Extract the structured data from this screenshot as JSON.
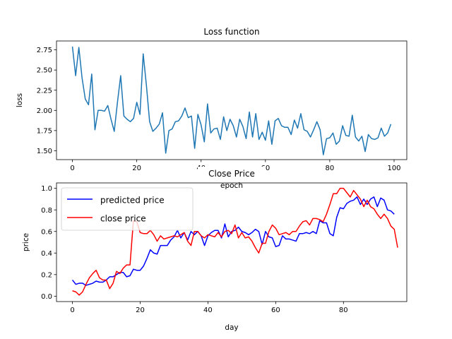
{
  "chart_data": [
    {
      "type": "line",
      "title": "Loss function",
      "xlabel": "epoch",
      "ylabel": "loss",
      "xlim": [
        -4.95,
        103.95
      ],
      "ylim": [
        1.39,
        2.86
      ],
      "xticks": [
        0,
        20,
        40,
        60,
        80,
        100
      ],
      "yticks": [
        1.5,
        1.75,
        2.0,
        2.25,
        2.5,
        2.75
      ],
      "ytick_labels": [
        "1.50",
        "1.75",
        "2.00",
        "2.25",
        "2.50",
        "2.75"
      ],
      "grid": false,
      "series": [
        {
          "color": "#1f77b4",
          "x_start": 0,
          "values": [
            2.79,
            2.43,
            2.78,
            2.4,
            2.14,
            2.07,
            2.45,
            1.76,
            2.0,
            2.0,
            1.99,
            2.06,
            1.89,
            1.74,
            2.1,
            2.43,
            1.93,
            1.89,
            1.86,
            1.9,
            2.1,
            1.95,
            2.7,
            2.31,
            1.86,
            1.74,
            1.78,
            1.83,
            1.97,
            1.47,
            1.75,
            1.77,
            1.86,
            1.87,
            1.93,
            2.03,
            1.91,
            1.93,
            1.53,
            1.95,
            1.82,
            1.61,
            2.08,
            1.72,
            1.77,
            1.78,
            1.64,
            1.92,
            1.75,
            1.89,
            1.81,
            1.67,
            1.89,
            1.8,
            1.65,
            1.98,
            1.67,
            1.96,
            1.64,
            1.73,
            1.63,
            1.87,
            1.58,
            1.87,
            1.9,
            1.81,
            1.79,
            1.79,
            1.7,
            1.88,
            1.78,
            1.96,
            1.76,
            1.74,
            1.67,
            1.76,
            1.86,
            1.76,
            1.45,
            1.65,
            1.66,
            1.72,
            1.58,
            1.62,
            1.81,
            1.69,
            1.68,
            1.94,
            1.67,
            1.62,
            1.68,
            1.49,
            1.7,
            1.65,
            1.64,
            1.66,
            1.78,
            1.68,
            1.72,
            1.83
          ]
        }
      ]
    },
    {
      "type": "line",
      "title": "Close Price",
      "xlabel": "day",
      "ylabel": "price",
      "xlim": [
        -4.7,
        98.7
      ],
      "ylim": [
        -0.05,
        1.05
      ],
      "xticks": [
        0,
        20,
        40,
        60,
        80
      ],
      "yticks": [
        0.0,
        0.2,
        0.4,
        0.6,
        0.8,
        1.0
      ],
      "ytick_labels": [
        "0.0",
        "0.2",
        "0.4",
        "0.6",
        "0.8",
        "1.0"
      ],
      "grid": false,
      "legend": "top-left",
      "series": [
        {
          "name": "predicted price",
          "color": "#0000ff",
          "x_start": 0,
          "values": [
            0.15,
            0.11,
            0.12,
            0.12,
            0.1,
            0.11,
            0.12,
            0.14,
            0.13,
            0.13,
            0.15,
            0.18,
            0.18,
            0.2,
            0.22,
            0.22,
            0.18,
            0.19,
            0.25,
            0.24,
            0.24,
            0.28,
            0.35,
            0.43,
            0.4,
            0.39,
            0.47,
            0.47,
            0.47,
            0.52,
            0.55,
            0.61,
            0.54,
            0.59,
            0.52,
            0.6,
            0.57,
            0.6,
            0.56,
            0.47,
            0.56,
            0.59,
            0.61,
            0.61,
            0.54,
            0.67,
            0.55,
            0.6,
            0.61,
            0.64,
            0.6,
            0.59,
            0.57,
            0.59,
            0.62,
            0.6,
            0.48,
            0.6,
            0.55,
            0.54,
            0.46,
            0.47,
            0.56,
            0.53,
            0.53,
            0.52,
            0.51,
            0.58,
            0.58,
            0.59,
            0.58,
            0.6,
            0.58,
            0.7,
            0.68,
            0.68,
            0.58,
            0.56,
            0.73,
            0.82,
            0.81,
            0.86,
            0.88,
            0.89,
            0.92,
            0.85,
            0.9,
            0.85,
            0.9,
            0.92,
            0.83,
            0.91,
            0.89,
            0.8,
            0.79,
            0.76
          ]
        },
        {
          "name": "close price",
          "color": "#ff0000",
          "x_start": 0,
          "values": [
            0.05,
            0.04,
            0.01,
            0.04,
            0.11,
            0.17,
            0.21,
            0.24,
            0.17,
            0.15,
            0.15,
            0.07,
            0.12,
            0.23,
            0.21,
            0.26,
            0.29,
            0.29,
            0.7,
            0.69,
            0.59,
            0.58,
            0.58,
            0.61,
            0.57,
            0.51,
            0.56,
            0.53,
            0.54,
            0.55,
            0.56,
            0.55,
            0.57,
            0.59,
            0.51,
            0.47,
            0.6,
            0.6,
            0.56,
            0.54,
            0.57,
            0.56,
            0.55,
            0.59,
            0.55,
            0.6,
            0.61,
            0.58,
            0.66,
            0.54,
            0.59,
            0.54,
            0.55,
            0.51,
            0.45,
            0.4,
            0.49,
            0.49,
            0.6,
            0.66,
            0.63,
            0.57,
            0.58,
            0.59,
            0.57,
            0.6,
            0.6,
            0.65,
            0.69,
            0.7,
            0.66,
            0.72,
            0.72,
            0.71,
            0.69,
            0.76,
            0.85,
            0.95,
            0.95,
            1.0,
            1.0,
            0.96,
            0.92,
            0.98,
            0.94,
            0.9,
            0.83,
            0.89,
            0.83,
            0.81,
            0.76,
            0.72,
            0.76,
            0.72,
            0.65,
            0.62,
            0.45
          ]
        }
      ]
    }
  ]
}
